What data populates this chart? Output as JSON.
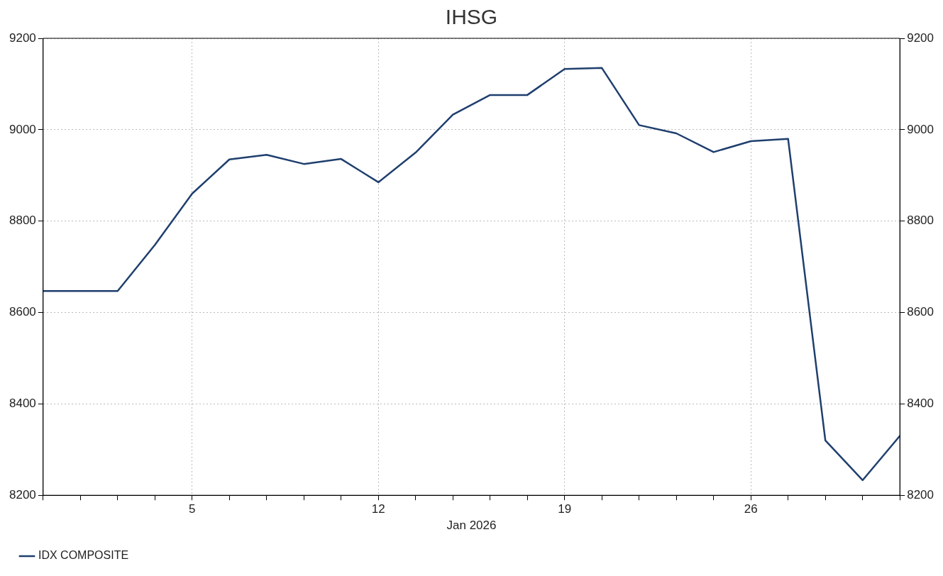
{
  "chart_data": {
    "type": "line",
    "title": "IHSG",
    "xlabel": "Jan 2026",
    "categories": [
      null,
      null,
      null,
      null,
      "5",
      null,
      null,
      null,
      null,
      "12",
      null,
      null,
      null,
      null,
      "19",
      null,
      null,
      null,
      null,
      "26",
      null,
      null,
      null,
      null
    ],
    "series": [
      {
        "name": "IDX COMPOSITE",
        "color": "#1f3f6e",
        "values": [
          8647,
          8647,
          8647,
          8748,
          8860,
          8935,
          8945,
          8925,
          8936,
          8885,
          8950,
          9033,
          9076,
          9076,
          9133,
          9135,
          9010,
          8992,
          8951,
          8975,
          8980,
          8320,
          8233,
          8330
        ]
      }
    ],
    "ylim": [
      8200,
      9200
    ],
    "yticks": [
      8200,
      8400,
      8600,
      8800,
      9000,
      9200
    ],
    "y2lim": [
      8200,
      9200
    ],
    "y2ticks": [
      8200,
      8400,
      8600,
      8800,
      9000,
      9200
    ],
    "grid": true,
    "legend": "bottom left",
    "marker": "none",
    "line_style": "solid"
  }
}
